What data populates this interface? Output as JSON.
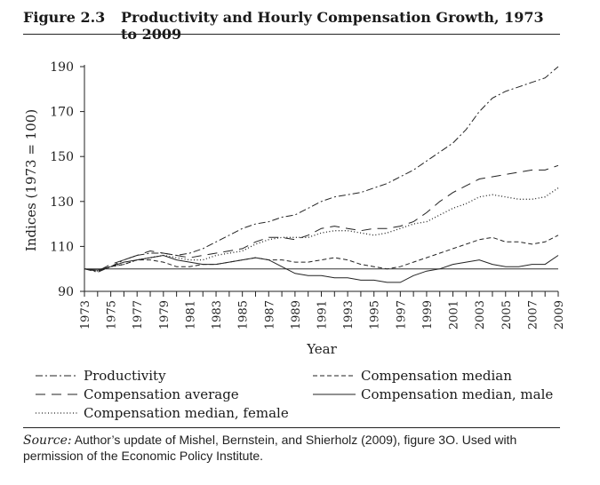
{
  "header": {
    "figure_label": "Figure 2.3",
    "title": "Productivity and Hourly Compensation Growth, 1973 to 2009"
  },
  "source": {
    "prefix": "Source:",
    "text": " Author’s update of Mishel, Bernstein, and Shierholz (2009), figure 3O. Used with permission of the Economic Policy Institute."
  },
  "chart_data": {
    "type": "line",
    "title": "Productivity and Hourly Compensation Growth, 1973 to 2009",
    "xlabel": "Year",
    "ylabel": "Indices (1973 = 100)",
    "xlim": [
      1973,
      2009
    ],
    "ylim": [
      90,
      190
    ],
    "yticks": [
      90,
      110,
      130,
      150,
      170,
      190
    ],
    "xtick_labels": [
      "1973",
      "1975",
      "1977",
      "1979",
      "1981",
      "1983",
      "1985",
      "1987",
      "1989",
      "1991",
      "1993",
      "1995",
      "1997",
      "1999",
      "2001",
      "2003",
      "2005",
      "2007",
      "2009"
    ],
    "reference_line": 100,
    "grid": false,
    "legend_position": "bottom",
    "x": [
      1973,
      1974,
      1975,
      1976,
      1977,
      1978,
      1979,
      1980,
      1981,
      1982,
      1983,
      1984,
      1985,
      1986,
      1987,
      1988,
      1989,
      1990,
      1991,
      1992,
      1993,
      1994,
      1995,
      1996,
      1997,
      1998,
      1999,
      2000,
      2001,
      2002,
      2003,
      2004,
      2005,
      2006,
      2007,
      2008,
      2009
    ],
    "series": [
      {
        "name": "Productivity",
        "style": "dashdot",
        "values": [
          100,
          98.5,
          101,
          104,
          106,
          107,
          107,
          106,
          107,
          109,
          112,
          115,
          118,
          120,
          121,
          123,
          124,
          127,
          130,
          132,
          133,
          134,
          136,
          138,
          141,
          144,
          148,
          152,
          156,
          162,
          170,
          176,
          179,
          181,
          183,
          185,
          190
        ]
      },
      {
        "name": "Compensation average",
        "style": "longdash",
        "values": [
          100,
          99,
          102,
          104,
          106,
          108,
          107,
          106,
          105,
          106,
          107,
          108,
          109,
          112,
          114,
          114,
          113,
          115,
          118,
          119,
          118,
          117,
          118,
          118,
          119,
          121,
          125,
          130,
          134,
          137,
          140,
          141,
          142,
          143,
          144,
          144,
          146
        ]
      },
      {
        "name": "Compensation median, female",
        "style": "dotted",
        "values": [
          100,
          99,
          101,
          102,
          104,
          105,
          106,
          105,
          104,
          104,
          106,
          107,
          108,
          111,
          113,
          114,
          114,
          114,
          116,
          117,
          117,
          116,
          115,
          116,
          118,
          120,
          121,
          124,
          127,
          129,
          132,
          133,
          132,
          131,
          131,
          132,
          136
        ]
      },
      {
        "name": "Compensation median",
        "style": "dashed",
        "values": [
          100,
          99,
          101,
          102,
          104,
          104,
          103,
          101,
          101,
          102,
          102,
          103,
          104,
          105,
          104,
          104,
          103,
          103,
          104,
          105,
          104,
          102,
          101,
          100,
          101,
          103,
          105,
          107,
          109,
          111,
          113,
          114,
          112,
          112,
          111,
          112,
          115
        ]
      },
      {
        "name": "Compensation median, male",
        "style": "solid",
        "values": [
          100,
          99.5,
          101,
          103,
          104,
          105,
          106,
          104,
          103,
          102,
          102,
          103,
          104,
          105,
          104,
          101,
          98,
          97,
          97,
          96,
          96,
          95,
          95,
          94,
          94,
          97,
          99,
          100,
          102,
          103,
          104,
          102,
          101,
          101,
          102,
          102,
          106
        ]
      }
    ]
  }
}
